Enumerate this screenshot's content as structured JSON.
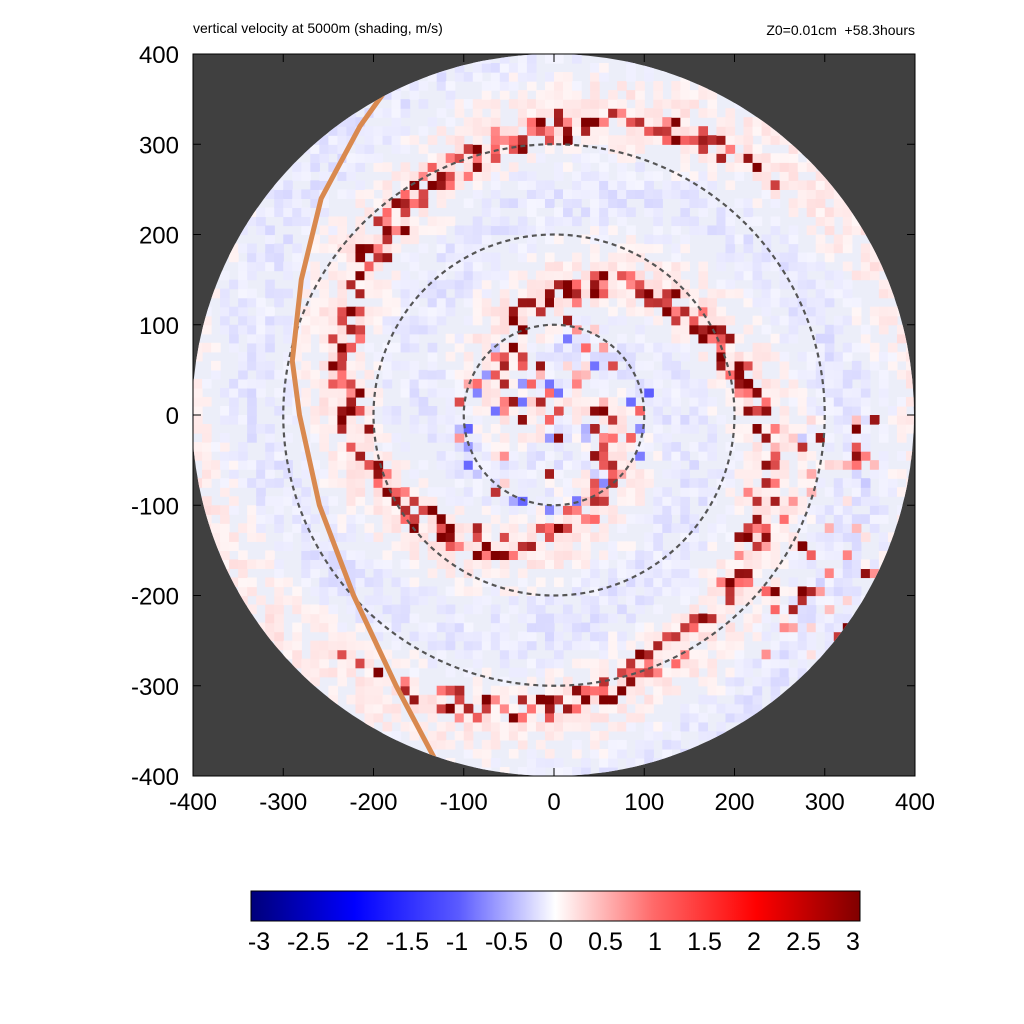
{
  "title_left": "vertical velocity at 5000m (shading, m/s)",
  "title_right": "Z0=0.01cm  +58.3hours",
  "colors": {
    "masked_background": "#404040",
    "positive_max": "#800000",
    "negative_max": "#00007a",
    "zero": "#ffffff",
    "reference_circles": "#555555",
    "track_line": "#d9894f"
  },
  "chart_data": {
    "type": "heatmap",
    "field": "vertical velocity at 5000m",
    "units": "m/s",
    "xlim": [
      -400,
      400
    ],
    "ylim": [
      -400,
      400
    ],
    "x_ticks": [
      -400,
      -300,
      -200,
      -100,
      0,
      100,
      200,
      300,
      400
    ],
    "y_ticks": [
      400,
      300,
      200,
      100,
      0,
      -100,
      -200,
      -300,
      -400
    ],
    "domain_radius": 400,
    "reference_circle_radii": [
      100,
      200,
      300
    ],
    "colorbar": {
      "range": [
        -3,
        3
      ],
      "tick_labels": [
        "-3",
        "-2.5",
        "-2",
        "-1.5",
        "-1",
        "-0.5",
        "0",
        "0.5",
        "1",
        "1.5",
        "2",
        "2.5",
        "3"
      ],
      "colormap": "blue-white-red"
    },
    "track_line": [
      [
        -130,
        -385
      ],
      [
        -175,
        -300
      ],
      [
        -222,
        -200
      ],
      [
        -260,
        -100
      ],
      [
        -282,
        0
      ],
      [
        -290,
        60
      ],
      [
        -280,
        150
      ],
      [
        -258,
        240
      ],
      [
        -215,
        320
      ],
      [
        -165,
        390
      ]
    ]
  }
}
